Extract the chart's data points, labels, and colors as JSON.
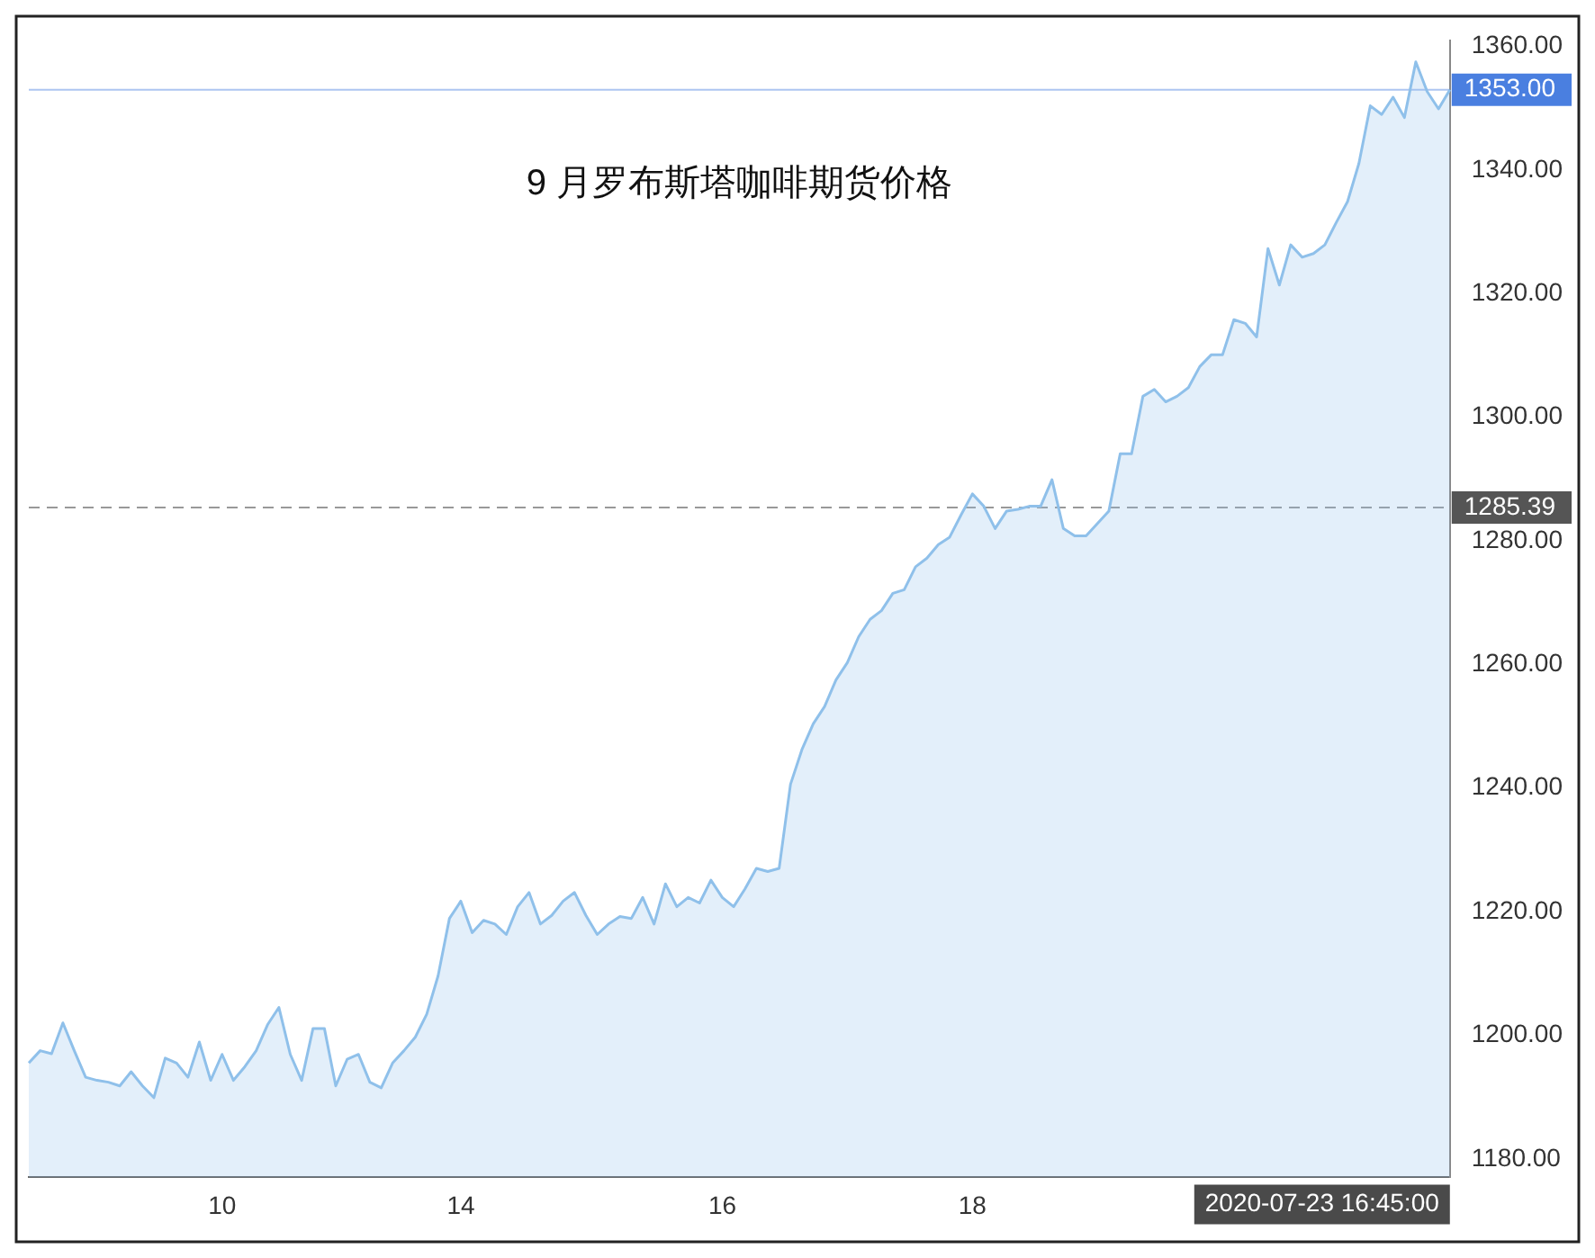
{
  "chart_data": {
    "type": "area",
    "title": "9 月罗布斯塔咖啡期货价格",
    "categories": [
      null,
      null,
      null,
      null,
      null,
      null,
      null,
      null,
      null,
      null,
      null,
      null,
      null,
      null,
      null,
      null,
      null,
      "10",
      null,
      null,
      null,
      null,
      null,
      null,
      null,
      null,
      null,
      null,
      null,
      null,
      null,
      null,
      null,
      null,
      null,
      null,
      null,
      null,
      "14",
      null,
      null,
      null,
      null,
      null,
      null,
      null,
      null,
      null,
      null,
      null,
      null,
      null,
      null,
      null,
      null,
      null,
      null,
      null,
      null,
      null,
      null,
      "16",
      null,
      null,
      null,
      null,
      null,
      null,
      null,
      null,
      null,
      null,
      null,
      null,
      null,
      null,
      null,
      null,
      null,
      null,
      null,
      null,
      null,
      "18",
      null,
      null,
      null,
      null,
      null,
      null,
      null,
      null,
      null,
      null,
      null,
      null,
      null,
      null,
      null,
      null,
      null,
      null,
      null,
      null,
      null,
      null,
      null,
      null,
      null,
      null,
      null,
      null,
      null,
      null,
      null,
      null,
      null,
      null,
      null,
      null,
      null,
      null,
      null,
      null,
      null,
      null
    ],
    "series": [
      {
        "color": "#8fc0ea",
        "values": [
          1195.5,
          1197.5,
          1197,
          1202,
          1197.5,
          1193.2,
          1192.7,
          1192.4,
          1191.8,
          1194.1,
          1191.8,
          1189.9,
          1196.3,
          1195.5,
          1193.2,
          1198.9,
          1192.7,
          1196.9,
          1192.7,
          1194.9,
          1197.5,
          1201.7,
          1204.5,
          1196.9,
          1192.7,
          1201.1,
          1201.1,
          1191.8,
          1196.1,
          1196.9,
          1192.4,
          1191.5,
          1195.5,
          1197.5,
          1199.7,
          1203.4,
          1209.6,
          1218.9,
          1221.7,
          1216.6,
          1218.6,
          1218,
          1216.3,
          1220.8,
          1223.1,
          1218,
          1219.4,
          1221.7,
          1223.1,
          1219.4,
          1216.3,
          1218,
          1219.2,
          1218.9,
          1222.3,
          1218,
          1224.5,
          1220.8,
          1222.3,
          1221.4,
          1225.1,
          1222.3,
          1220.8,
          1223.7,
          1227,
          1226.5,
          1227,
          1240.6,
          1246.2,
          1250.4,
          1253.2,
          1257.5,
          1260.3,
          1264.5,
          1267.3,
          1268.7,
          1271.5,
          1272.1,
          1275.8,
          1277.2,
          1279.4,
          1280.6,
          1284.2,
          1287.6,
          1285.6,
          1282,
          1284.8,
          1285.1,
          1285.6,
          1285.6,
          1289.9,
          1282,
          1280.8,
          1280.8,
          1282.8,
          1284.8,
          1294.1,
          1294.1,
          1303.4,
          1304.5,
          1302.5,
          1303.4,
          1304.8,
          1308.2,
          1310.1,
          1310.1,
          1315.8,
          1315.2,
          1313,
          1327.3,
          1321.4,
          1327.9,
          1325.9,
          1326.5,
          1327.9,
          1331.5,
          1334.9,
          1341.1,
          1350.4,
          1349,
          1351.8,
          1348.5,
          1357.5,
          1352.7,
          1349.9,
          1353
        ]
      }
    ],
    "ylim": [
      1177,
      1361
    ],
    "yticks": [
      {
        "value": 1180,
        "label": "1180.00"
      },
      {
        "value": 1200,
        "label": "1200.00"
      },
      {
        "value": 1220,
        "label": "1220.00"
      },
      {
        "value": 1240,
        "label": "1240.00"
      },
      {
        "value": 1260,
        "label": "1260.00"
      },
      {
        "value": 1280,
        "label": "1280.00"
      },
      {
        "value": 1300,
        "label": "1300.00"
      },
      {
        "value": 1320,
        "label": "1320.00"
      },
      {
        "value": 1340,
        "label": "1340.00"
      },
      {
        "value": 1360,
        "label": "1360.00"
      }
    ],
    "ref_lines": [
      {
        "axis": "y",
        "value": 1353,
        "label": "1353.00",
        "color": "#4a7fe0",
        "line_style": "solid"
      },
      {
        "axis": "y",
        "value": 1285.39,
        "label": "1285.39",
        "color": "#555555",
        "line_style": "dashed"
      }
    ],
    "annotations": [
      "2020-07-23 16:45:00"
    ]
  }
}
